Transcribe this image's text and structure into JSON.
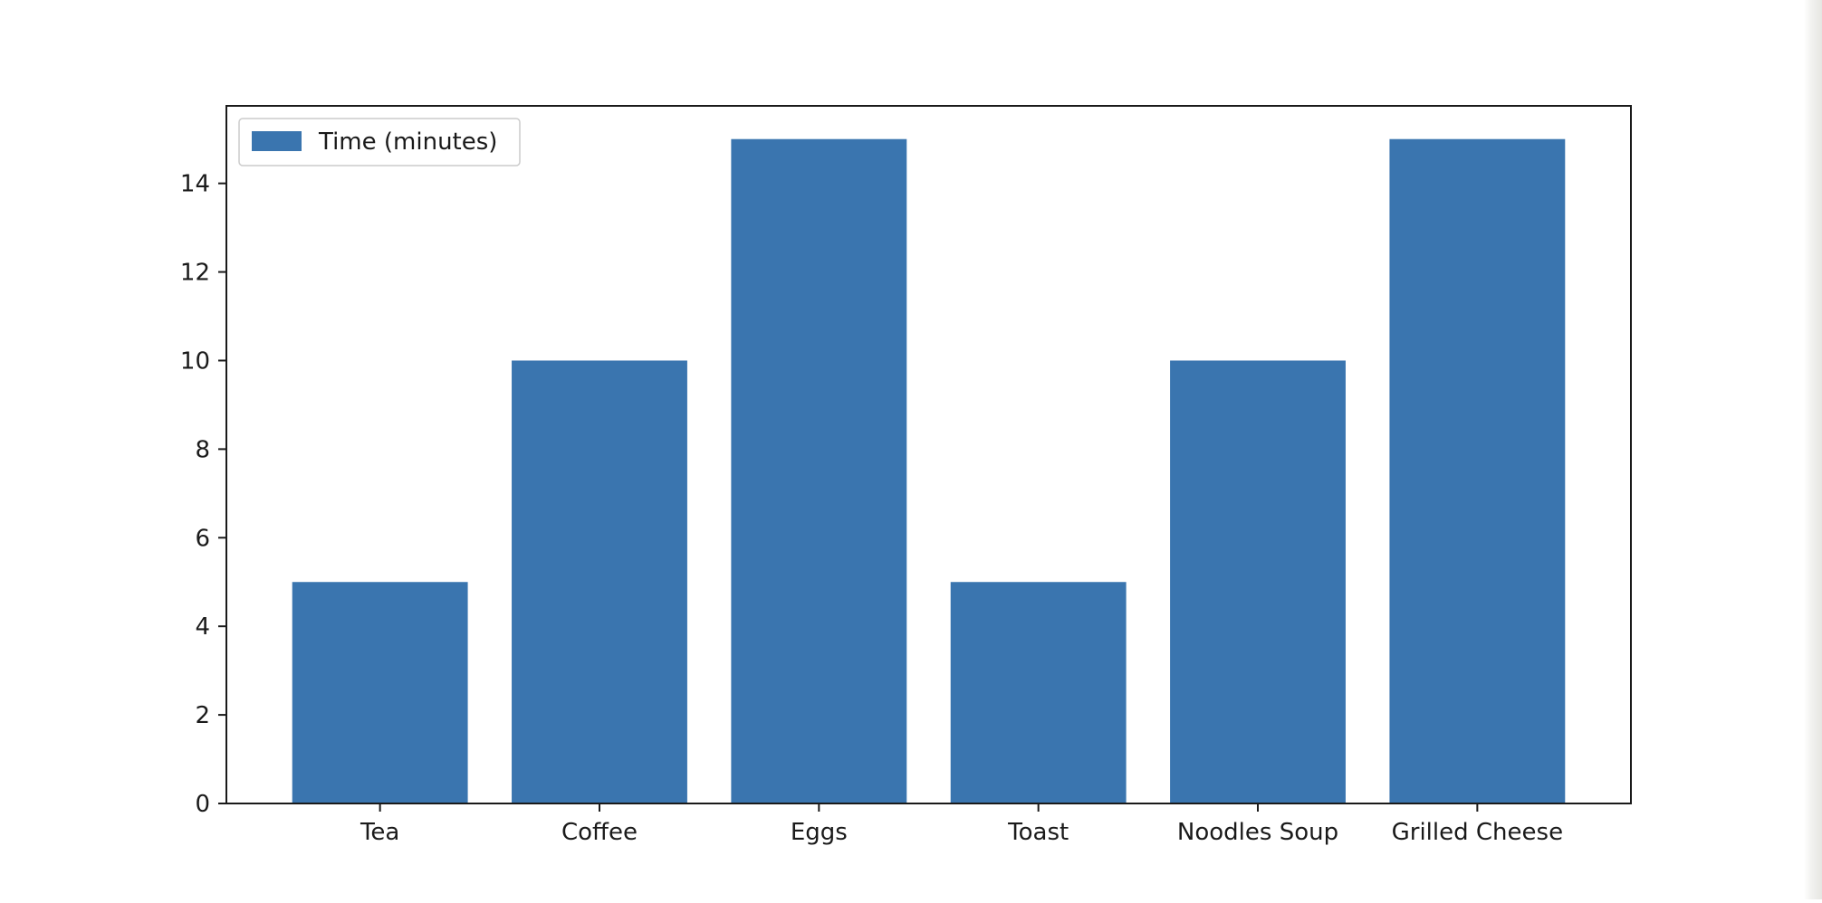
{
  "chart_data": {
    "type": "bar",
    "categories": [
      "Tea",
      "Coffee",
      "Eggs",
      "Toast",
      "Noodles Soup",
      "Grilled Cheese"
    ],
    "series": [
      {
        "name": "Time (minutes)",
        "values": [
          5,
          10,
          15,
          5,
          10,
          15
        ],
        "color": "#3a75af"
      }
    ],
    "title": "",
    "xlabel": "",
    "ylabel": "",
    "ylim": [
      0,
      15.75
    ],
    "yticks": [
      0,
      2,
      4,
      6,
      8,
      10,
      12,
      14
    ],
    "grid": false,
    "legend_position": "top-left"
  }
}
